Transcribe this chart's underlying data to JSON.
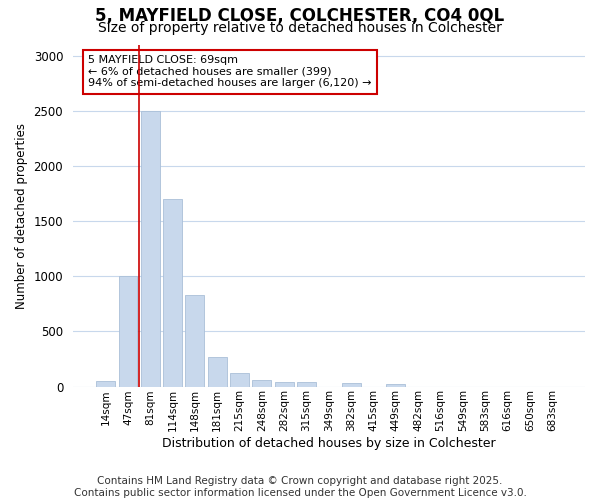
{
  "title_line1": "5, MAYFIELD CLOSE, COLCHESTER, CO4 0QL",
  "title_line2": "Size of property relative to detached houses in Colchester",
  "xlabel": "Distribution of detached houses by size in Colchester",
  "ylabel": "Number of detached properties",
  "categories": [
    "14sqm",
    "47sqm",
    "81sqm",
    "114sqm",
    "148sqm",
    "181sqm",
    "215sqm",
    "248sqm",
    "282sqm",
    "315sqm",
    "349sqm",
    "382sqm",
    "415sqm",
    "449sqm",
    "482sqm",
    "516sqm",
    "549sqm",
    "583sqm",
    "616sqm",
    "650sqm",
    "683sqm"
  ],
  "values": [
    50,
    1000,
    2500,
    1700,
    830,
    270,
    125,
    55,
    45,
    40,
    0,
    30,
    0,
    20,
    0,
    0,
    0,
    0,
    0,
    0,
    0
  ],
  "bar_color": "#c8d8ec",
  "bar_edge_color": "#aabfd8",
  "reference_line_x": 1.5,
  "reference_line_color": "#cc0000",
  "annotation_text": "5 MAYFIELD CLOSE: 69sqm\n← 6% of detached houses are smaller (399)\n94% of semi-detached houses are larger (6,120) →",
  "annotation_box_color": "#ffffff",
  "annotation_box_edge": "#cc0000",
  "ylim": [
    0,
    3100
  ],
  "yticks": [
    0,
    500,
    1000,
    1500,
    2000,
    2500,
    3000
  ],
  "footer_line1": "Contains HM Land Registry data © Crown copyright and database right 2025.",
  "footer_line2": "Contains public sector information licensed under the Open Government Licence v3.0.",
  "bg_color": "#ffffff",
  "plot_bg_color": "#ffffff",
  "grid_color": "#c8d8ec",
  "title_fontsize": 12,
  "subtitle_fontsize": 10,
  "footer_fontsize": 7.5
}
